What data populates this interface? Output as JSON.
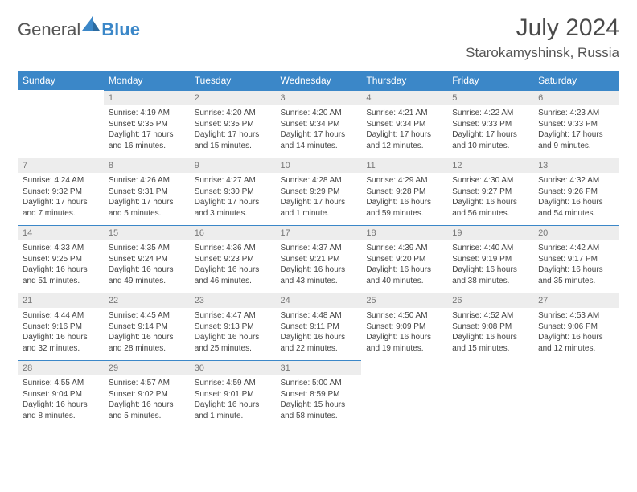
{
  "brand": {
    "word1": "General",
    "word2": "Blue"
  },
  "title": {
    "month": "July 2024",
    "location": "Starokamyshinsk, Russia"
  },
  "colors": {
    "accent": "#3b87c8",
    "header_text": "#ffffff",
    "daynum_bg": "#ededed",
    "daynum_text": "#777777",
    "body_text": "#444444"
  },
  "daysOfWeek": [
    "Sunday",
    "Monday",
    "Tuesday",
    "Wednesday",
    "Thursday",
    "Friday",
    "Saturday"
  ],
  "layout": {
    "first_day_column": 1,
    "days_in_month": 31,
    "rows": 5
  },
  "days": {
    "1": {
      "sunrise": "4:19 AM",
      "sunset": "9:35 PM",
      "daylight": "17 hours and 16 minutes."
    },
    "2": {
      "sunrise": "4:20 AM",
      "sunset": "9:35 PM",
      "daylight": "17 hours and 15 minutes."
    },
    "3": {
      "sunrise": "4:20 AM",
      "sunset": "9:34 PM",
      "daylight": "17 hours and 14 minutes."
    },
    "4": {
      "sunrise": "4:21 AM",
      "sunset": "9:34 PM",
      "daylight": "17 hours and 12 minutes."
    },
    "5": {
      "sunrise": "4:22 AM",
      "sunset": "9:33 PM",
      "daylight": "17 hours and 10 minutes."
    },
    "6": {
      "sunrise": "4:23 AM",
      "sunset": "9:33 PM",
      "daylight": "17 hours and 9 minutes."
    },
    "7": {
      "sunrise": "4:24 AM",
      "sunset": "9:32 PM",
      "daylight": "17 hours and 7 minutes."
    },
    "8": {
      "sunrise": "4:26 AM",
      "sunset": "9:31 PM",
      "daylight": "17 hours and 5 minutes."
    },
    "9": {
      "sunrise": "4:27 AM",
      "sunset": "9:30 PM",
      "daylight": "17 hours and 3 minutes."
    },
    "10": {
      "sunrise": "4:28 AM",
      "sunset": "9:29 PM",
      "daylight": "17 hours and 1 minute."
    },
    "11": {
      "sunrise": "4:29 AM",
      "sunset": "9:28 PM",
      "daylight": "16 hours and 59 minutes."
    },
    "12": {
      "sunrise": "4:30 AM",
      "sunset": "9:27 PM",
      "daylight": "16 hours and 56 minutes."
    },
    "13": {
      "sunrise": "4:32 AM",
      "sunset": "9:26 PM",
      "daylight": "16 hours and 54 minutes."
    },
    "14": {
      "sunrise": "4:33 AM",
      "sunset": "9:25 PM",
      "daylight": "16 hours and 51 minutes."
    },
    "15": {
      "sunrise": "4:35 AM",
      "sunset": "9:24 PM",
      "daylight": "16 hours and 49 minutes."
    },
    "16": {
      "sunrise": "4:36 AM",
      "sunset": "9:23 PM",
      "daylight": "16 hours and 46 minutes."
    },
    "17": {
      "sunrise": "4:37 AM",
      "sunset": "9:21 PM",
      "daylight": "16 hours and 43 minutes."
    },
    "18": {
      "sunrise": "4:39 AM",
      "sunset": "9:20 PM",
      "daylight": "16 hours and 40 minutes."
    },
    "19": {
      "sunrise": "4:40 AM",
      "sunset": "9:19 PM",
      "daylight": "16 hours and 38 minutes."
    },
    "20": {
      "sunrise": "4:42 AM",
      "sunset": "9:17 PM",
      "daylight": "16 hours and 35 minutes."
    },
    "21": {
      "sunrise": "4:44 AM",
      "sunset": "9:16 PM",
      "daylight": "16 hours and 32 minutes."
    },
    "22": {
      "sunrise": "4:45 AM",
      "sunset": "9:14 PM",
      "daylight": "16 hours and 28 minutes."
    },
    "23": {
      "sunrise": "4:47 AM",
      "sunset": "9:13 PM",
      "daylight": "16 hours and 25 minutes."
    },
    "24": {
      "sunrise": "4:48 AM",
      "sunset": "9:11 PM",
      "daylight": "16 hours and 22 minutes."
    },
    "25": {
      "sunrise": "4:50 AM",
      "sunset": "9:09 PM",
      "daylight": "16 hours and 19 minutes."
    },
    "26": {
      "sunrise": "4:52 AM",
      "sunset": "9:08 PM",
      "daylight": "16 hours and 15 minutes."
    },
    "27": {
      "sunrise": "4:53 AM",
      "sunset": "9:06 PM",
      "daylight": "16 hours and 12 minutes."
    },
    "28": {
      "sunrise": "4:55 AM",
      "sunset": "9:04 PM",
      "daylight": "16 hours and 8 minutes."
    },
    "29": {
      "sunrise": "4:57 AM",
      "sunset": "9:02 PM",
      "daylight": "16 hours and 5 minutes."
    },
    "30": {
      "sunrise": "4:59 AM",
      "sunset": "9:01 PM",
      "daylight": "16 hours and 1 minute."
    },
    "31": {
      "sunrise": "5:00 AM",
      "sunset": "8:59 PM",
      "daylight": "15 hours and 58 minutes."
    }
  },
  "labels": {
    "sunrise": "Sunrise: ",
    "sunset": "Sunset: ",
    "daylight": "Daylight: "
  }
}
